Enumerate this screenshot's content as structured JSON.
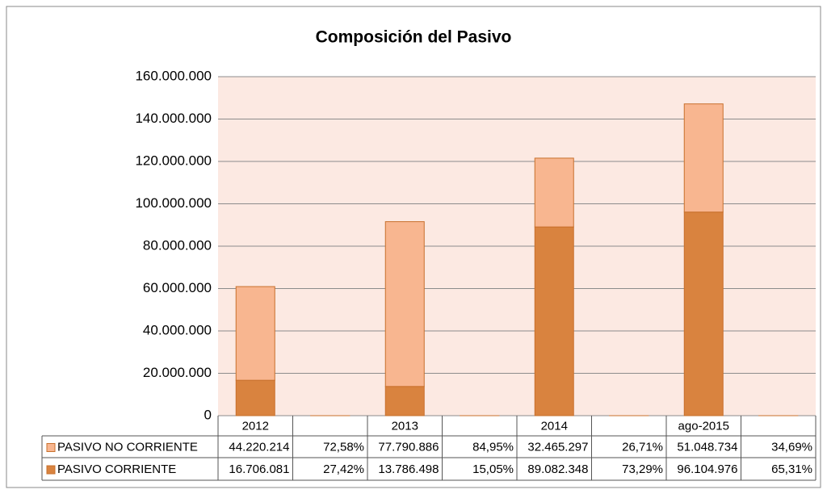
{
  "chart_data": {
    "type": "bar",
    "stacked": true,
    "title": "Composición del Pasivo",
    "categories": [
      "2012",
      null,
      "2013",
      null,
      "2014",
      null,
      "ago-2015",
      null
    ],
    "series": [
      {
        "name": "PASIVO NO CORRIENTE",
        "color": "#f8b690",
        "values": [
          44220214,
          72.58,
          77790886,
          84.95,
          32465297,
          26.71,
          51048734,
          34.69
        ],
        "value_labels": [
          "44.220.214",
          "72,58%",
          "77.790.886",
          "84,95%",
          "32.465.297",
          "26,71%",
          "51.048.734",
          "34,69%"
        ]
      },
      {
        "name": "PASIVO CORRIENTE",
        "color": "#d9833f",
        "values": [
          16706081,
          27.42,
          13786498,
          15.05,
          89082348,
          73.29,
          96104976,
          65.31
        ],
        "value_labels": [
          "16.706.081",
          "27,42%",
          "13.786.498",
          "15,05%",
          "89.082.348",
          "73,29%",
          "96.104.976",
          "65,31%"
        ]
      }
    ],
    "ylim": [
      0,
      160000000
    ],
    "yticks": [
      0,
      {
        "value": 20000000,
        "label": "20.000.000"
      },
      {
        "value": 40000000,
        "label": "40.000.000"
      },
      {
        "value": 60000000,
        "label": "60.000.000"
      },
      {
        "value": 80000000,
        "label": "80.000.000"
      },
      {
        "value": 100000000,
        "label": "100.000.000"
      },
      {
        "value": 120000000,
        "label": "120.000.000"
      },
      {
        "value": 140000000,
        "label": "140.000.000"
      },
      {
        "value": 160000000,
        "label": "160.000.000"
      }
    ],
    "grid": true,
    "plot_background": "#fce9e2"
  }
}
